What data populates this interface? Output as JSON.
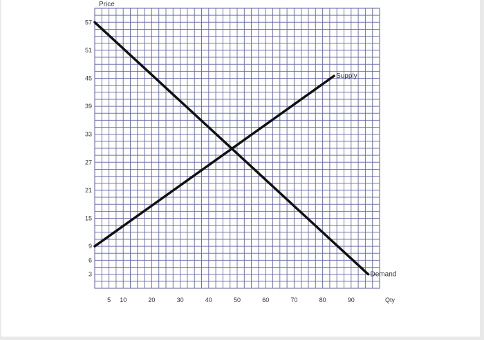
{
  "chart_data": {
    "type": "line",
    "title": "",
    "xlabel": "Qty",
    "ylabel": "Price",
    "x_ticks": [
      5,
      10,
      20,
      30,
      40,
      50,
      60,
      70,
      80,
      90
    ],
    "y_ticks": [
      3,
      6,
      9,
      15,
      21,
      27,
      33,
      39,
      45,
      51,
      57
    ],
    "xlim": [
      0,
      100
    ],
    "ylim": [
      0,
      60
    ],
    "grid": true,
    "grid_color": "#5b5e9c",
    "line_color": "#111111",
    "series": [
      {
        "name": "Supply",
        "x": [
          0,
          84
        ],
        "y": [
          9,
          45.5
        ]
      },
      {
        "name": "Demand",
        "x": [
          0,
          96
        ],
        "y": [
          57,
          3
        ]
      }
    ]
  }
}
